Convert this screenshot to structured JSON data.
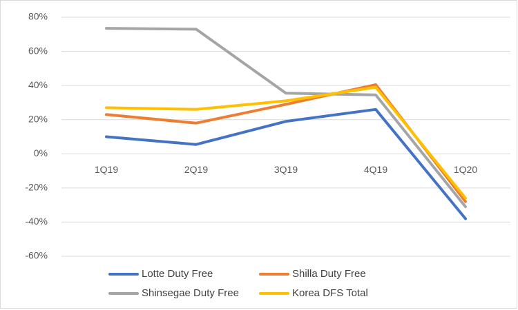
{
  "chart_data": {
    "type": "line",
    "title": "",
    "xlabel": "",
    "ylabel": "",
    "categories": [
      "1Q19",
      "2Q19",
      "3Q19",
      "4Q19",
      "1Q20"
    ],
    "ylim": [
      -60,
      80
    ],
    "yticks": [
      80,
      60,
      40,
      20,
      0,
      -20,
      -40,
      -60
    ],
    "ytick_labels": [
      "80%",
      "60%",
      "40%",
      "20%",
      "0%",
      "-20%",
      "-40%",
      "-60%"
    ],
    "grid": true,
    "legend_position": "bottom",
    "series": [
      {
        "name": "Lotte Duty Free",
        "color": "#4472C4",
        "values": [
          10,
          5.5,
          19,
          26,
          -38
        ]
      },
      {
        "name": "Shilla Duty Free",
        "color": "#ED7D31",
        "values": [
          23,
          18,
          29,
          40.5,
          -28
        ]
      },
      {
        "name": "Shinsegae Duty Free",
        "color": "#A5A5A5",
        "values": [
          73.5,
          73,
          35.5,
          34.5,
          -31
        ]
      },
      {
        "name": "Korea DFS Total",
        "color": "#FFC000",
        "values": [
          27,
          26,
          31,
          39,
          -26
        ]
      }
    ]
  }
}
